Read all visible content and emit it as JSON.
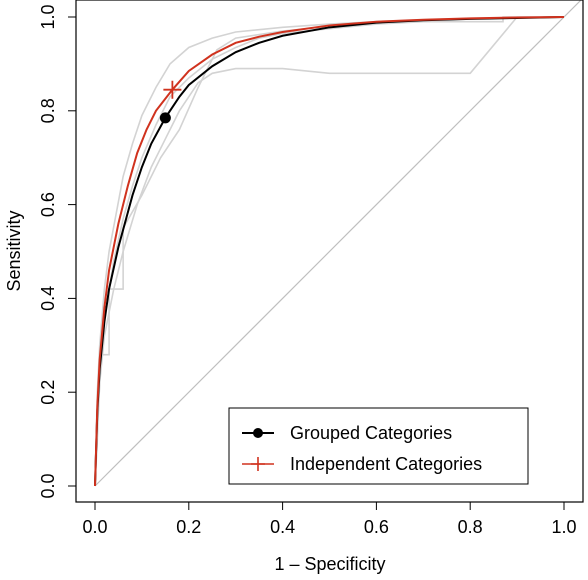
{
  "chart_data": {
    "type": "line",
    "title": "",
    "xlabel": "1 – Specificity",
    "ylabel": "Sensitivity",
    "xlim": [
      0,
      1
    ],
    "ylim": [
      0,
      1
    ],
    "xticks": [
      0.0,
      0.2,
      0.4,
      0.6,
      0.8,
      1.0
    ],
    "yticks": [
      0.0,
      0.2,
      0.4,
      0.6,
      0.8,
      1.0
    ],
    "xtick_labels": [
      "0.0",
      "0.2",
      "0.4",
      "0.6",
      "0.8",
      "1.0"
    ],
    "ytick_labels": [
      "0.0",
      "0.2",
      "0.4",
      "0.6",
      "0.8",
      "1.0"
    ],
    "grid": false,
    "legend_position": "bottom-right",
    "colors": {
      "grouped": "#000000",
      "independent": "#d0321e",
      "background_curves": "#d3d3d3",
      "diagonal": "#bfbfbf"
    },
    "series": [
      {
        "name": "Grouped Categories",
        "color": "#000000",
        "marker": "circle",
        "operating_point": [
          0.15,
          0.785
        ],
        "x": [
          0,
          0.005,
          0.01,
          0.02,
          0.03,
          0.05,
          0.08,
          0.1,
          0.12,
          0.15,
          0.18,
          0.2,
          0.25,
          0.3,
          0.35,
          0.4,
          0.5,
          0.6,
          0.7,
          0.8,
          0.9,
          1.0
        ],
        "y": [
          0,
          0.16,
          0.25,
          0.35,
          0.42,
          0.51,
          0.62,
          0.68,
          0.73,
          0.785,
          0.83,
          0.855,
          0.895,
          0.925,
          0.945,
          0.96,
          0.978,
          0.988,
          0.993,
          0.996,
          0.998,
          1.0
        ]
      },
      {
        "name": "Independent Categories",
        "color": "#d0321e",
        "marker": "plus",
        "operating_point": [
          0.165,
          0.845
        ],
        "x": [
          0,
          0.005,
          0.01,
          0.02,
          0.03,
          0.05,
          0.07,
          0.09,
          0.11,
          0.13,
          0.165,
          0.2,
          0.25,
          0.3,
          0.35,
          0.4,
          0.5,
          0.6,
          0.7,
          0.8,
          0.9,
          1.0
        ],
        "y": [
          0,
          0.17,
          0.27,
          0.38,
          0.46,
          0.56,
          0.64,
          0.71,
          0.76,
          0.8,
          0.845,
          0.885,
          0.92,
          0.945,
          0.958,
          0.968,
          0.982,
          0.99,
          0.994,
          0.997,
          0.999,
          1.0
        ]
      }
    ],
    "background_curves": [
      {
        "x": [
          0,
          0.005,
          0.01,
          0.02,
          0.03,
          0.045,
          0.06,
          0.08,
          0.1,
          0.13,
          0.16,
          0.2,
          0.25,
          0.3,
          0.4,
          0.5,
          0.6,
          0.7,
          0.8,
          0.9,
          1.0
        ],
        "y": [
          0,
          0.2,
          0.3,
          0.42,
          0.5,
          0.58,
          0.66,
          0.73,
          0.79,
          0.85,
          0.9,
          0.935,
          0.955,
          0.968,
          0.978,
          0.985,
          0.99,
          0.994,
          0.997,
          0.999,
          1.0
        ]
      },
      {
        "x": [
          0,
          0.005,
          0.01,
          0.03,
          0.03,
          0.06,
          0.06,
          0.1,
          0.14,
          0.18,
          0.22,
          0.26,
          0.3,
          0.4,
          0.5,
          0.6,
          0.7,
          0.8,
          0.9,
          1.0
        ],
        "y": [
          0,
          0.1,
          0.28,
          0.28,
          0.42,
          0.42,
          0.55,
          0.62,
          0.7,
          0.76,
          0.85,
          0.93,
          0.955,
          0.97,
          0.98,
          0.99,
          0.993,
          0.996,
          0.998,
          1.0
        ]
      },
      {
        "x": [
          0,
          0.005,
          0.01,
          0.02,
          0.04,
          0.06,
          0.09,
          0.12,
          0.15,
          0.18,
          0.22,
          0.25,
          0.3,
          0.4,
          0.5,
          0.6,
          0.7,
          0.8,
          0.9,
          1.0
        ],
        "y": [
          0,
          0.12,
          0.22,
          0.32,
          0.42,
          0.5,
          0.6,
          0.68,
          0.74,
          0.8,
          0.86,
          0.88,
          0.89,
          0.89,
          0.88,
          0.88,
          0.88,
          0.88,
          1.0,
          1.0
        ]
      },
      {
        "x": [
          0,
          0.01,
          0.02,
          0.04,
          0.06,
          0.08,
          0.1,
          0.13,
          0.16,
          0.2,
          0.25,
          0.3,
          0.35,
          0.4,
          0.5,
          0.6,
          0.7,
          0.8,
          0.85,
          0.87,
          0.87,
          1.0
        ],
        "y": [
          0,
          0.22,
          0.36,
          0.48,
          0.57,
          0.64,
          0.7,
          0.77,
          0.83,
          0.87,
          0.91,
          0.935,
          0.955,
          0.965,
          0.975,
          0.985,
          0.99,
          0.99,
          0.99,
          0.99,
          1.0,
          1.0
        ]
      }
    ]
  }
}
